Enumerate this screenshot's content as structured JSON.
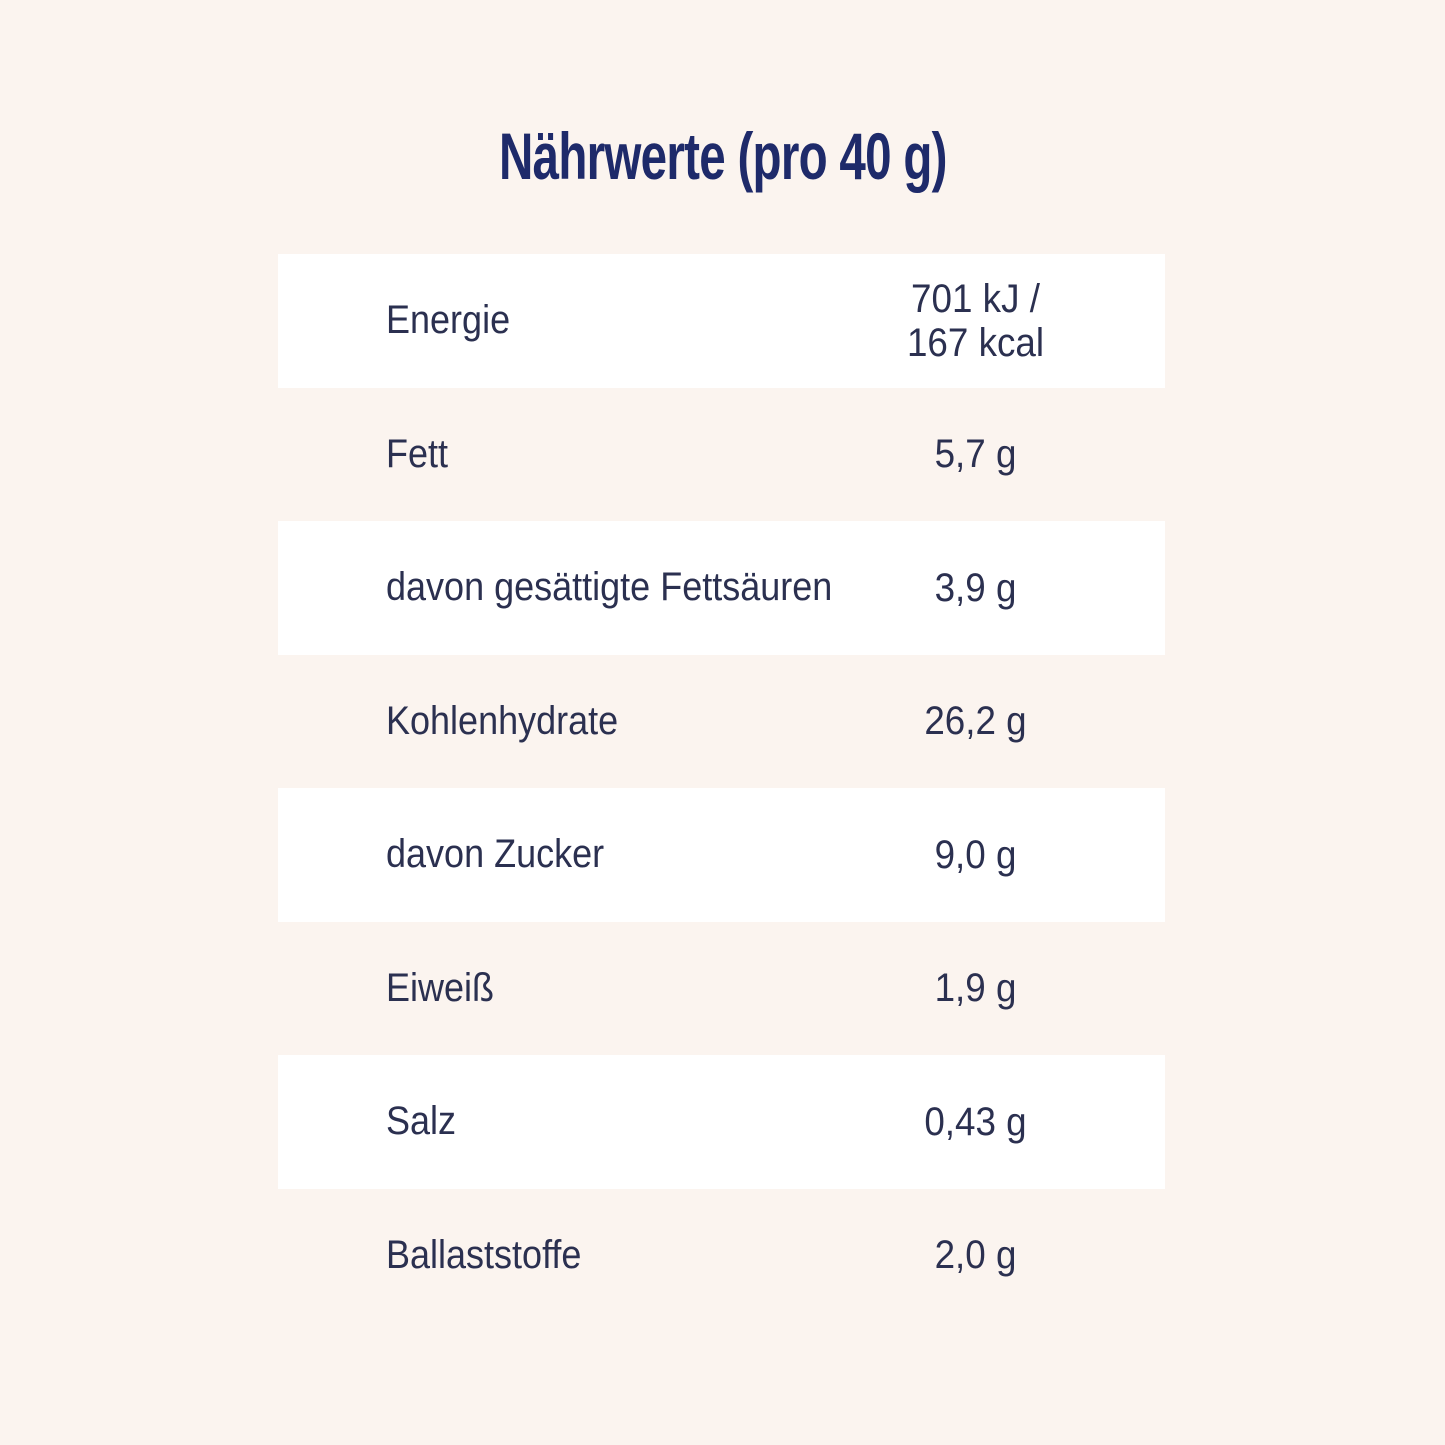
{
  "title": "Nährwerte (pro 40 g)",
  "colors": {
    "background": "#fbf4ef",
    "row_alt": "#ffffff",
    "title": "#1e2a6a",
    "text": "#2b3050"
  },
  "rows": [
    {
      "label": "Energie",
      "value": "701 kJ /\n167 kcal"
    },
    {
      "label": "Fett",
      "value": "5,7 g"
    },
    {
      "label": "davon gesättigte Fettsäuren",
      "value": "3,9 g"
    },
    {
      "label": "Kohlenhydrate",
      "value": "26,2 g"
    },
    {
      "label": "davon Zucker",
      "value": "9,0 g"
    },
    {
      "label": "Eiweiß",
      "value": "1,9 g"
    },
    {
      "label": "Salz",
      "value": "0,43 g"
    },
    {
      "label": "Ballaststoffe",
      "value": "2,0 g"
    }
  ]
}
